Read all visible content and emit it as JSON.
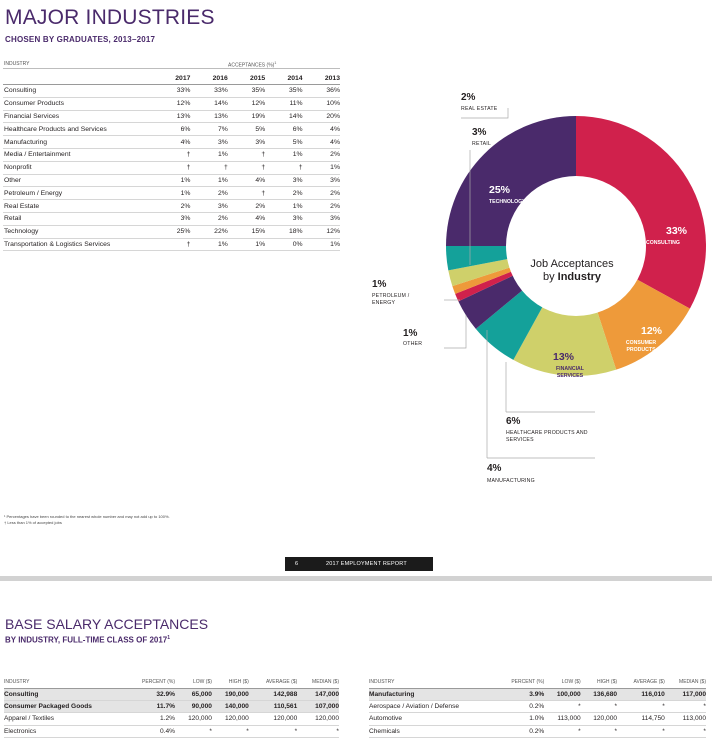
{
  "title": "MAJOR INDUSTRIES",
  "subtitle": "CHOSEN BY GRADUATES, 2013–2017",
  "table": {
    "industry_label": "INDUSTRY",
    "acceptances_label": "ACCEPTANCES (%)",
    "acceptances_sup": "1",
    "years": [
      "2017",
      "2016",
      "2015",
      "2014",
      "2013"
    ],
    "rows": [
      {
        "name": "Consulting",
        "values": [
          "33%",
          "33%",
          "35%",
          "35%",
          "36%"
        ]
      },
      {
        "name": "Consumer Products",
        "values": [
          "12%",
          "14%",
          "12%",
          "11%",
          "10%"
        ]
      },
      {
        "name": "Financial Services",
        "values": [
          "13%",
          "13%",
          "19%",
          "14%",
          "20%"
        ]
      },
      {
        "name": "Healthcare Products and Services",
        "values": [
          "6%",
          "7%",
          "5%",
          "6%",
          "4%"
        ]
      },
      {
        "name": "Manufacturing",
        "values": [
          "4%",
          "3%",
          "3%",
          "5%",
          "4%"
        ]
      },
      {
        "name": "Media / Entertainment",
        "values": [
          "†",
          "1%",
          "†",
          "1%",
          "2%"
        ]
      },
      {
        "name": "Nonprofit",
        "values": [
          "†",
          "†",
          "†",
          "†",
          "1%"
        ]
      },
      {
        "name": "Other",
        "values": [
          "1%",
          "1%",
          "4%",
          "3%",
          "3%"
        ]
      },
      {
        "name": "Petroleum / Energy",
        "values": [
          "1%",
          "2%",
          "†",
          "2%",
          "2%"
        ]
      },
      {
        "name": "Real Estate",
        "values": [
          "2%",
          "3%",
          "2%",
          "1%",
          "2%"
        ]
      },
      {
        "name": "Retail",
        "values": [
          "3%",
          "2%",
          "4%",
          "3%",
          "3%"
        ]
      },
      {
        "name": "Technology",
        "values": [
          "25%",
          "22%",
          "15%",
          "18%",
          "12%"
        ]
      },
      {
        "name": "Transportation & Logistics Services",
        "values": [
          "†",
          "1%",
          "1%",
          "0%",
          "1%"
        ]
      }
    ]
  },
  "footnotes": {
    "note1": "¹ Percentages have been rounded to the nearest whole number and may not add up to 100%.",
    "note2": "† Less than 1% of accepted jobs"
  },
  "footer": {
    "page": "6",
    "report": "2017 EMPLOYMENT REPORT"
  },
  "chart_data": {
    "type": "pie",
    "center_line1": "Job Acceptances",
    "center_line2_prefix": "by ",
    "center_line2_bold": "Industry",
    "slices": [
      {
        "label": "CONSULTING",
        "pct": "33%",
        "value": 33,
        "color": "#d0214c"
      },
      {
        "label": "CONSUMER PRODUCTS",
        "pct": "12%",
        "value": 12,
        "color": "#ee9a3a"
      },
      {
        "label": "FINANCIAL SERVICES",
        "pct": "13%",
        "value": 13,
        "color": "#cfd06a"
      },
      {
        "label": "HEALTHCARE PRODUCTS AND SERVICES",
        "pct": "6%",
        "value": 6,
        "color": "#14a19a"
      },
      {
        "label": "MANUFACTURING",
        "pct": "4%",
        "value": 4,
        "color": "#4a2a6b"
      },
      {
        "label": "OTHER",
        "pct": "1%",
        "value": 1,
        "color": "#d0214c"
      },
      {
        "label": "PETROLEUM / ENERGY",
        "pct": "1%",
        "value": 1,
        "color": "#ee9a3a"
      },
      {
        "label": "REAL ESTATE",
        "pct": "2%",
        "value": 2,
        "color": "#cfd06a"
      },
      {
        "label": "RETAIL",
        "pct": "3%",
        "value": 3,
        "color": "#14a19a"
      },
      {
        "label": "TECHNOLOGY",
        "pct": "25%",
        "value": 25,
        "color": "#4a2a6b"
      }
    ]
  },
  "salary": {
    "title": "BASE SALARY ACCEPTANCES",
    "subtitle": "BY INDUSTRY, FULL-TIME CLASS OF 2017",
    "subtitle_sup": "1",
    "headers": [
      "INDUSTRY",
      "PERCENT (%)",
      "LOW ($)",
      "HIGH ($)",
      "AVERAGE ($)",
      "MEDIAN ($)"
    ],
    "left_rows": [
      {
        "bold": true,
        "cells": [
          "Consulting",
          "32.9%",
          "65,000",
          "190,000",
          "142,988",
          "147,000"
        ]
      },
      {
        "bold": true,
        "cells": [
          "Consumer Packaged Goods",
          "11.7%",
          "90,000",
          "140,000",
          "110,561",
          "107,000"
        ]
      },
      {
        "bold": false,
        "cells": [
          "Apparel / Textiles",
          "1.2%",
          "120,000",
          "120,000",
          "120,000",
          "120,000"
        ]
      },
      {
        "bold": false,
        "cells": [
          "Electronics",
          "0.4%",
          "*",
          "*",
          "*",
          "*"
        ]
      }
    ],
    "right_rows": [
      {
        "bold": true,
        "cells": [
          "Manufacturing",
          "3.9%",
          "100,000",
          "136,680",
          "116,010",
          "117,000"
        ]
      },
      {
        "bold": false,
        "cells": [
          "Aerospace / Aviation / Defense",
          "0.2%",
          "*",
          "*",
          "*",
          "*"
        ]
      },
      {
        "bold": false,
        "cells": [
          "Automotive",
          "1.0%",
          "113,000",
          "120,000",
          "114,750",
          "113,000"
        ]
      },
      {
        "bold": false,
        "cells": [
          "Chemicals",
          "0.2%",
          "*",
          "*",
          "*",
          "*"
        ]
      }
    ]
  }
}
